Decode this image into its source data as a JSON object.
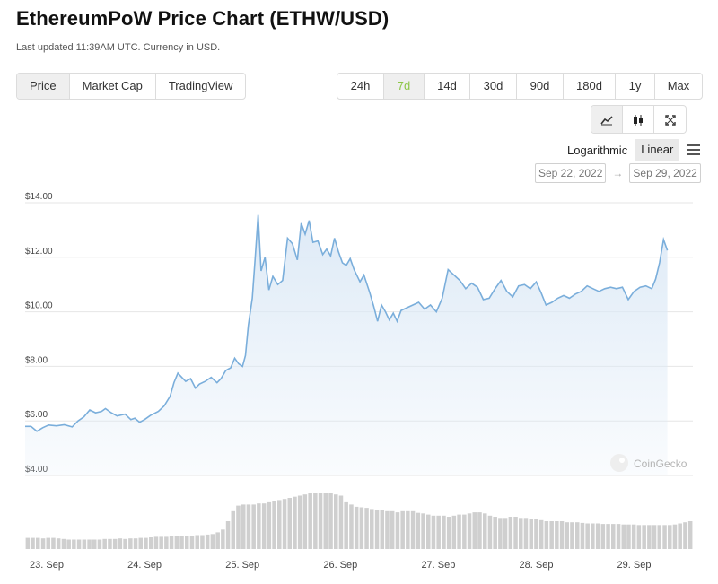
{
  "header": {
    "title": "EthereumPoW Price Chart (ETHW/USD)",
    "updated": "Last updated 11:39AM UTC. Currency in USD."
  },
  "chart_type_tabs": [
    {
      "label": "Price",
      "active": true
    },
    {
      "label": "Market Cap",
      "active": false
    },
    {
      "label": "TradingView",
      "active": false
    }
  ],
  "range_tabs": [
    {
      "label": "24h",
      "active": false
    },
    {
      "label": "7d",
      "active": true
    },
    {
      "label": "14d",
      "active": false
    },
    {
      "label": "30d",
      "active": false
    },
    {
      "label": "90d",
      "active": false
    },
    {
      "label": "180d",
      "active": false
    },
    {
      "label": "1y",
      "active": false
    },
    {
      "label": "Max",
      "active": false
    }
  ],
  "view_buttons": [
    {
      "icon": "line-chart-icon",
      "active": true
    },
    {
      "icon": "candlestick-icon",
      "active": false
    },
    {
      "icon": "fullscreen-icon",
      "active": false
    }
  ],
  "scale": {
    "logarithmic": "Logarithmic",
    "linear": "Linear",
    "selected": "Linear"
  },
  "date_range": {
    "from": "Sep 22, 2022",
    "arrow": "→",
    "to": "Sep 29, 2022"
  },
  "watermark": "CoinGecko",
  "colors": {
    "line": "#7aaedb",
    "fill_top": "#dce9f6",
    "volume": "#cfcfcf",
    "active_range": "#8dc647"
  },
  "chart_data": {
    "type": "line",
    "x_unit": "days since Sep 23 00:00 UTC",
    "ylim": [
      4,
      14
    ],
    "yticks": [
      "$4.00",
      "$6.00",
      "$8.00",
      "$10.00",
      "$12.00",
      "$14.00"
    ],
    "ytick_values": [
      4,
      6,
      8,
      10,
      12,
      14
    ],
    "xticks": [
      "23. Sep",
      "24. Sep",
      "25. Sep",
      "26. Sep",
      "27. Sep",
      "28. Sep",
      "29. Sep"
    ],
    "xtick_values": [
      0,
      1,
      2,
      3,
      4,
      5,
      6
    ],
    "xlim": [
      -0.22,
      6.6
    ],
    "grid": true,
    "legend": "none",
    "series": [
      {
        "values": [
          [
            -0.22,
            5.8
          ],
          [
            -0.16,
            5.8
          ],
          [
            -0.1,
            5.62
          ],
          [
            -0.04,
            5.75
          ],
          [
            0.02,
            5.85
          ],
          [
            0.1,
            5.82
          ],
          [
            0.18,
            5.86
          ],
          [
            0.26,
            5.78
          ],
          [
            0.32,
            6.0
          ],
          [
            0.38,
            6.15
          ],
          [
            0.44,
            6.4
          ],
          [
            0.5,
            6.3
          ],
          [
            0.56,
            6.35
          ],
          [
            0.6,
            6.45
          ],
          [
            0.66,
            6.3
          ],
          [
            0.72,
            6.18
          ],
          [
            0.8,
            6.25
          ],
          [
            0.86,
            6.05
          ],
          [
            0.9,
            6.1
          ],
          [
            0.95,
            5.95
          ],
          [
            1.0,
            6.05
          ],
          [
            1.06,
            6.2
          ],
          [
            1.14,
            6.35
          ],
          [
            1.2,
            6.55
          ],
          [
            1.26,
            6.9
          ],
          [
            1.3,
            7.4
          ],
          [
            1.34,
            7.75
          ],
          [
            1.38,
            7.6
          ],
          [
            1.42,
            7.45
          ],
          [
            1.47,
            7.55
          ],
          [
            1.52,
            7.2
          ],
          [
            1.56,
            7.35
          ],
          [
            1.62,
            7.45
          ],
          [
            1.68,
            7.6
          ],
          [
            1.74,
            7.4
          ],
          [
            1.78,
            7.55
          ],
          [
            1.83,
            7.85
          ],
          [
            1.88,
            7.95
          ],
          [
            1.92,
            8.3
          ],
          [
            1.96,
            8.1
          ],
          [
            2.0,
            8.0
          ],
          [
            2.03,
            8.4
          ],
          [
            2.06,
            9.5
          ],
          [
            2.1,
            10.5
          ],
          [
            2.13,
            12.0
          ],
          [
            2.16,
            13.55
          ],
          [
            2.19,
            11.5
          ],
          [
            2.23,
            12.0
          ],
          [
            2.27,
            10.8
          ],
          [
            2.31,
            11.3
          ],
          [
            2.36,
            11.0
          ],
          [
            2.41,
            11.15
          ],
          [
            2.46,
            12.7
          ],
          [
            2.51,
            12.5
          ],
          [
            2.56,
            11.9
          ],
          [
            2.6,
            13.25
          ],
          [
            2.64,
            12.85
          ],
          [
            2.68,
            13.35
          ],
          [
            2.72,
            12.55
          ],
          [
            2.77,
            12.6
          ],
          [
            2.82,
            12.1
          ],
          [
            2.86,
            12.3
          ],
          [
            2.9,
            12.05
          ],
          [
            2.94,
            12.7
          ],
          [
            2.98,
            12.2
          ],
          [
            3.02,
            11.8
          ],
          [
            3.06,
            11.7
          ],
          [
            3.1,
            11.95
          ],
          [
            3.14,
            11.55
          ],
          [
            3.2,
            11.1
          ],
          [
            3.24,
            11.35
          ],
          [
            3.3,
            10.7
          ],
          [
            3.34,
            10.2
          ],
          [
            3.38,
            9.65
          ],
          [
            3.42,
            10.25
          ],
          [
            3.46,
            10.0
          ],
          [
            3.5,
            9.7
          ],
          [
            3.54,
            9.95
          ],
          [
            3.58,
            9.65
          ],
          [
            3.62,
            10.05
          ],
          [
            3.68,
            10.15
          ],
          [
            3.74,
            10.25
          ],
          [
            3.8,
            10.35
          ],
          [
            3.86,
            10.1
          ],
          [
            3.92,
            10.25
          ],
          [
            3.98,
            10.0
          ],
          [
            4.04,
            10.5
          ],
          [
            4.1,
            11.55
          ],
          [
            4.16,
            11.35
          ],
          [
            4.22,
            11.15
          ],
          [
            4.28,
            10.85
          ],
          [
            4.34,
            11.05
          ],
          [
            4.4,
            10.9
          ],
          [
            4.46,
            10.45
          ],
          [
            4.52,
            10.5
          ],
          [
            4.58,
            10.85
          ],
          [
            4.64,
            11.15
          ],
          [
            4.7,
            10.75
          ],
          [
            4.76,
            10.55
          ],
          [
            4.82,
            10.95
          ],
          [
            4.88,
            11.0
          ],
          [
            4.94,
            10.85
          ],
          [
            5.0,
            11.1
          ],
          [
            5.05,
            10.7
          ],
          [
            5.1,
            10.25
          ],
          [
            5.16,
            10.35
          ],
          [
            5.22,
            10.5
          ],
          [
            5.28,
            10.6
          ],
          [
            5.34,
            10.5
          ],
          [
            5.4,
            10.65
          ],
          [
            5.46,
            10.75
          ],
          [
            5.52,
            10.95
          ],
          [
            5.58,
            10.85
          ],
          [
            5.64,
            10.75
          ],
          [
            5.7,
            10.85
          ],
          [
            5.76,
            10.9
          ],
          [
            5.82,
            10.85
          ],
          [
            5.88,
            10.9
          ],
          [
            5.94,
            10.45
          ],
          [
            6.0,
            10.75
          ],
          [
            6.06,
            10.9
          ],
          [
            6.12,
            10.95
          ],
          [
            6.18,
            10.85
          ],
          [
            6.22,
            11.2
          ],
          [
            6.26,
            11.8
          ],
          [
            6.3,
            12.65
          ],
          [
            6.34,
            12.25
          ]
        ]
      }
    ],
    "volume": [
      0.2,
      0.2,
      0.2,
      0.19,
      0.2,
      0.2,
      0.19,
      0.18,
      0.17,
      0.17,
      0.17,
      0.17,
      0.17,
      0.17,
      0.17,
      0.18,
      0.18,
      0.18,
      0.19,
      0.18,
      0.19,
      0.19,
      0.2,
      0.2,
      0.21,
      0.22,
      0.22,
      0.22,
      0.23,
      0.23,
      0.24,
      0.24,
      0.24,
      0.25,
      0.25,
      0.26,
      0.27,
      0.3,
      0.35,
      0.5,
      0.68,
      0.78,
      0.8,
      0.8,
      0.8,
      0.82,
      0.82,
      0.84,
      0.86,
      0.88,
      0.9,
      0.92,
      0.94,
      0.96,
      0.98,
      1.0,
      1.0,
      1.0,
      1.0,
      1.0,
      0.98,
      0.96,
      0.84,
      0.8,
      0.76,
      0.75,
      0.74,
      0.72,
      0.7,
      0.7,
      0.68,
      0.68,
      0.66,
      0.68,
      0.68,
      0.68,
      0.65,
      0.64,
      0.62,
      0.6,
      0.6,
      0.6,
      0.58,
      0.6,
      0.62,
      0.62,
      0.64,
      0.66,
      0.66,
      0.64,
      0.6,
      0.58,
      0.56,
      0.56,
      0.58,
      0.58,
      0.56,
      0.56,
      0.54,
      0.54,
      0.52,
      0.5,
      0.5,
      0.5,
      0.5,
      0.48,
      0.48,
      0.48,
      0.47,
      0.46,
      0.46,
      0.46,
      0.45,
      0.45,
      0.45,
      0.45,
      0.44,
      0.44,
      0.44,
      0.43,
      0.43,
      0.43,
      0.43,
      0.43,
      0.43,
      0.43,
      0.44,
      0.46,
      0.48,
      0.5
    ]
  }
}
